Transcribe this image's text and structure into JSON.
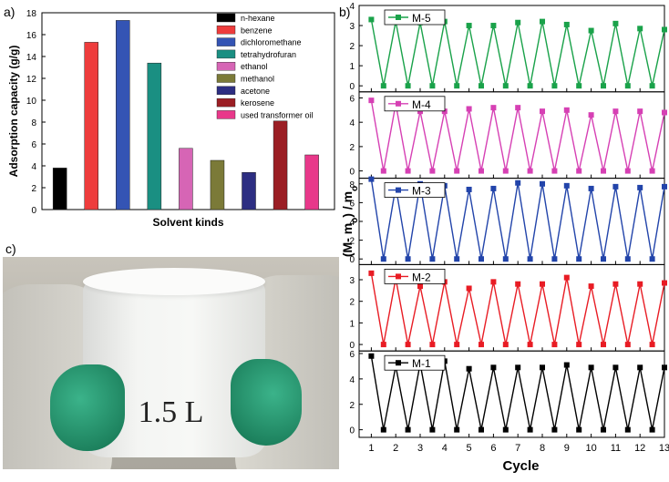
{
  "panel_labels": {
    "a": "a)",
    "b": "b)",
    "c": "c)"
  },
  "photo_text": "1.5 L",
  "chart_data": [
    {
      "type": "bar",
      "panel": "a)",
      "xlabel": "Solvent kinds",
      "ylabel": "Adsorption capacity (g/g)",
      "ylim": [
        0,
        18
      ],
      "yticks": [
        0,
        2,
        4,
        6,
        8,
        10,
        12,
        14,
        16,
        18
      ],
      "categories": [
        "n-hexane",
        "benzene",
        "dichloromethane",
        "tetrahydrofuran",
        "ethanol",
        "methanol",
        "acetone",
        "kerosene",
        "used transformer oil"
      ],
      "values": [
        3.8,
        15.3,
        17.3,
        13.4,
        5.6,
        4.5,
        3.4,
        8.1,
        5.0
      ],
      "colors": [
        "#000000",
        "#ee3c3c",
        "#3454b4",
        "#1a8f82",
        "#d665b5",
        "#7b7a38",
        "#2d2e82",
        "#9b1e24",
        "#e8388a"
      ],
      "legend": [
        "n-hexane",
        "benzene",
        "dichloromethane",
        "tetrahydrofuran",
        "ethanol",
        "methanol",
        "acetone",
        "kerosene",
        "used transformer oil"
      ],
      "legend_position": "top-right"
    },
    {
      "type": "line",
      "panel": "b)",
      "xlabel": "Cycle",
      "ylabel": "(M- mo) / mo",
      "x_range": [
        0.5,
        13
      ],
      "xticks": [
        1,
        2,
        3,
        4,
        5,
        6,
        7,
        8,
        9,
        10,
        11,
        12,
        13
      ],
      "x_peaks": [
        1,
        2,
        3,
        4,
        5,
        6,
        7,
        8,
        9,
        10,
        11,
        12,
        13
      ],
      "x_troughs": [
        1.5,
        2.5,
        3.5,
        4.5,
        5.5,
        6.5,
        7.5,
        8.5,
        9.5,
        10.5,
        11.5,
        12.5
      ],
      "series": [
        {
          "name": "M-5",
          "color": "#1aa24a",
          "ylim": [
            -0.3,
            4
          ],
          "yticks": [
            0,
            1,
            2,
            3,
            4
          ],
          "peaks": [
            3.3,
            3.2,
            3.15,
            3.2,
            3.0,
            3.0,
            3.15,
            3.2,
            3.05,
            2.75,
            3.1,
            2.85,
            2.8
          ],
          "trough": 0
        },
        {
          "name": "M-4",
          "color": "#d640b4",
          "ylim": [
            -0.6,
            6.5
          ],
          "yticks": [
            0,
            2,
            4,
            6
          ],
          "peaks": [
            5.8,
            5.5,
            4.9,
            4.9,
            5.1,
            5.2,
            5.2,
            4.9,
            5.0,
            4.6,
            4.9,
            4.9,
            4.8
          ],
          "trough": 0
        },
        {
          "name": "M-3",
          "color": "#2244aa",
          "ylim": [
            -0.6,
            8.6
          ],
          "yticks": [
            0,
            2,
            4,
            6,
            8
          ],
          "peaks": [
            8.5,
            7.7,
            8.0,
            7.8,
            7.4,
            7.5,
            8.1,
            8.0,
            7.8,
            7.5,
            7.7,
            7.6,
            7.7
          ],
          "trough": 0
        },
        {
          "name": "M-2",
          "color": "#e81c24",
          "ylim": [
            -0.3,
            3.7
          ],
          "yticks": [
            0,
            1,
            2,
            3
          ],
          "peaks": [
            3.3,
            3.05,
            2.7,
            2.9,
            2.6,
            2.9,
            2.8,
            2.8,
            3.1,
            2.7,
            2.8,
            2.8,
            2.85
          ],
          "trough": 0
        },
        {
          "name": "M-1",
          "color": "#000000",
          "ylim": [
            -0.6,
            6.2
          ],
          "yticks": [
            0,
            2,
            4,
            6
          ],
          "peaks": [
            5.8,
            5.0,
            5.2,
            5.4,
            4.8,
            4.9,
            4.9,
            4.9,
            5.1,
            4.9,
            4.9,
            4.9,
            4.9
          ],
          "trough": 0
        }
      ]
    }
  ]
}
